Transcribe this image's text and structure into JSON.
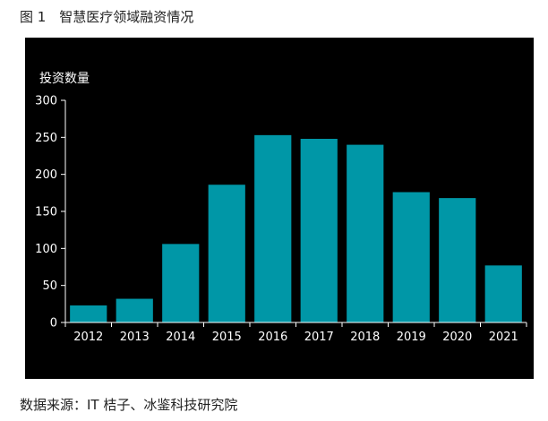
{
  "figure": {
    "caption": "图 1　智慧医疗领域融资情况",
    "source": "数据来源：IT 桔子、冰鉴科技研究院"
  },
  "chart_data": {
    "type": "bar",
    "title": "",
    "ylabel": "投资数量",
    "xlabel": "",
    "categories": [
      "2012",
      "2013",
      "2014",
      "2015",
      "2016",
      "2017",
      "2018",
      "2019",
      "2020",
      "2021"
    ],
    "values": [
      23,
      32,
      106,
      186,
      253,
      248,
      240,
      176,
      168,
      77
    ],
    "ylim": [
      0,
      300
    ],
    "yticks": [
      "0",
      "50",
      "100",
      "150",
      "200",
      "250",
      "300"
    ],
    "grid": false,
    "legend": "none",
    "colors": {
      "bar": "#0097a7",
      "background": "#000000",
      "axis": "#ffffff",
      "text": "#ffffff"
    }
  }
}
